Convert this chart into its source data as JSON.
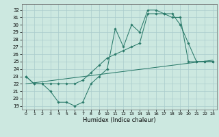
{
  "xlabel": "Humidex (Indice chaleur)",
  "ylabel": "",
  "bg_color": "#cce8e0",
  "grid_color": "#aacccc",
  "line_color": "#2a7a6a",
  "xlim": [
    -0.5,
    23.5
  ],
  "ylim": [
    18.5,
    32.8
  ],
  "xticks": [
    0,
    1,
    2,
    3,
    4,
    5,
    6,
    7,
    8,
    9,
    10,
    11,
    12,
    13,
    14,
    15,
    16,
    17,
    18,
    19,
    20,
    21,
    22,
    23
  ],
  "yticks": [
    19,
    20,
    21,
    22,
    23,
    24,
    25,
    26,
    27,
    28,
    29,
    30,
    31,
    32
  ],
  "line1_x": [
    0,
    1,
    2,
    3,
    4,
    5,
    6,
    7,
    8,
    9,
    10,
    11,
    12,
    13,
    14,
    15,
    16,
    17,
    18,
    19,
    20,
    21,
    22,
    23
  ],
  "line1_y": [
    23,
    22,
    22,
    21,
    19.5,
    19.5,
    19,
    19.5,
    22,
    23,
    24,
    29.5,
    27,
    30,
    29,
    32,
    32,
    31.5,
    31.5,
    30,
    27.5,
    25,
    25,
    25
  ],
  "line2_x": [
    0,
    1,
    2,
    3,
    4,
    5,
    6,
    7,
    8,
    9,
    10,
    11,
    12,
    13,
    14,
    15,
    16,
    17,
    18,
    19,
    20,
    21,
    22,
    23
  ],
  "line2_y": [
    23,
    22,
    22,
    22,
    22,
    22,
    22,
    22.5,
    23.5,
    24.5,
    25.5,
    26,
    26.5,
    27,
    27.5,
    31.5,
    31.5,
    31.5,
    31,
    31,
    25,
    25,
    25,
    25
  ],
  "line3_x": [
    0,
    23
  ],
  "line3_y": [
    22.0,
    25.2
  ]
}
